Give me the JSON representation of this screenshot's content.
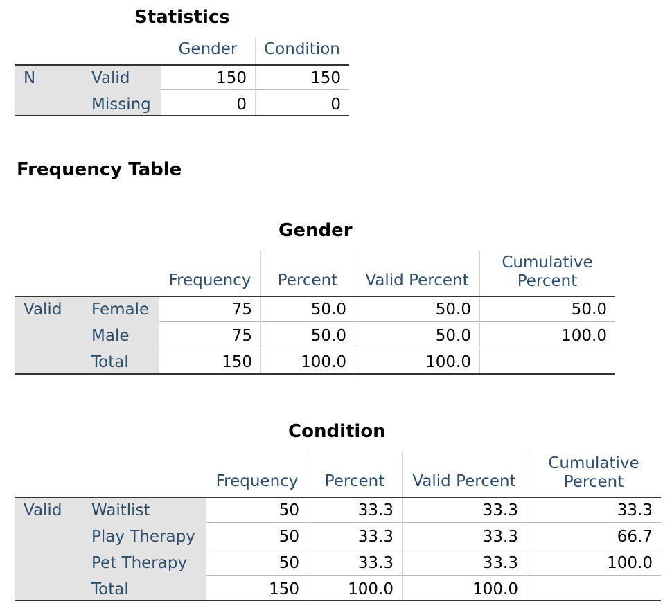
{
  "statistics": {
    "title": "Statistics",
    "col_headers": [
      "Gender",
      "Condition"
    ],
    "row_group": "N",
    "rows": [
      {
        "label": "Valid",
        "values": [
          "150",
          "150"
        ]
      },
      {
        "label": "Missing",
        "values": [
          "0",
          "0"
        ]
      }
    ]
  },
  "frequency_table_heading": "Frequency Table",
  "gender": {
    "title": "Gender",
    "col_headers": [
      "Frequency",
      "Percent",
      "Valid Percent",
      "Cumulative Percent"
    ],
    "row_group": "Valid",
    "rows": [
      {
        "label": "Female",
        "values": [
          "75",
          "50.0",
          "50.0",
          "50.0"
        ]
      },
      {
        "label": "Male",
        "values": [
          "75",
          "50.0",
          "50.0",
          "100.0"
        ]
      },
      {
        "label": "Total",
        "values": [
          "150",
          "100.0",
          "100.0",
          ""
        ]
      }
    ]
  },
  "condition": {
    "title": "Condition",
    "col_headers": [
      "Frequency",
      "Percent",
      "Valid Percent",
      "Cumulative Percent"
    ],
    "row_group": "Valid",
    "rows": [
      {
        "label": "Waitlist",
        "values": [
          "50",
          "33.3",
          "33.3",
          "33.3"
        ]
      },
      {
        "label": "Play Therapy",
        "values": [
          "50",
          "33.3",
          "33.3",
          "66.7"
        ]
      },
      {
        "label": "Pet Therapy",
        "values": [
          "50",
          "33.3",
          "33.3",
          "100.0"
        ]
      },
      {
        "label": "Total",
        "values": [
          "150",
          "100.0",
          "100.0",
          ""
        ]
      }
    ]
  }
}
